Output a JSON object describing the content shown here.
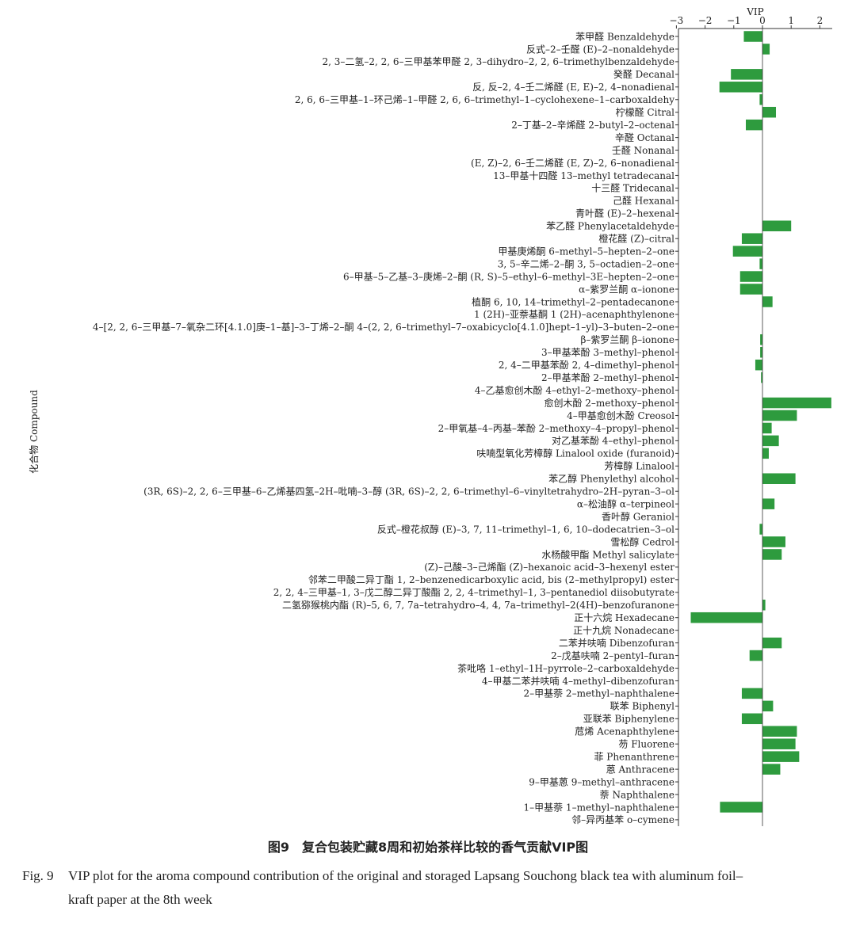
{
  "chart_data": {
    "type": "bar",
    "orientation": "horizontal",
    "xlabel": "VIP",
    "ylabel": "化合物 Compound",
    "xlim": [
      -3,
      2.4
    ],
    "xticks": [
      -3,
      -2,
      -1,
      0,
      1,
      2
    ],
    "xtick_labels": [
      "−3",
      "−2",
      "−1",
      "0",
      "1",
      "2"
    ],
    "bar_color": "#2e9b3e",
    "grid": false,
    "categories": [
      "苯甲醛 Benzaldehyde",
      "反式–2–壬醛 (E)–2–nonaldehyde",
      "2, 3–二氢–2, 2, 6–三甲基苯甲醛 2, 3–dihydro–2, 2, 6–trimethylbenzaldehyde",
      "癸醛 Decanal",
      "反, 反–2, 4–壬二烯醛 (E, E)–2, 4–nonadienal",
      "2, 6, 6–三甲基–1–环己烯–1–甲醛 2, 6, 6–trimethyl–1–cyclohexene–1–carboxaldehy",
      "柠檬醛 Citral",
      "2–丁基–2–辛烯醛 2–butyl–2–octenal",
      "辛醛 Octanal",
      "壬醛 Nonanal",
      "(E, Z)–2, 6–壬二烯醛 (E, Z)–2, 6–nonadienal",
      "13–甲基十四醛 13–methyl tetradecanal",
      "十三醛 Tridecanal",
      "己醛 Hexanal",
      "青叶醛 (E)–2–hexenal",
      "苯乙醛 Phenylacetaldehyde",
      "橙花醛 (Z)–citral",
      "甲基庚烯酮 6–methyl–5–hepten–2–one",
      "3, 5–辛二烯–2–酮 3, 5–octadien–2–one",
      "6–甲基–5–乙基–3–庚烯–2–酮 (R, S)–5–ethyl–6–methyl–3E–hepten–2–one",
      "α–紫罗兰酮 α–ionone",
      "植酮 6, 10, 14–trimethyl–2–pentadecanone",
      "1 (2H)–亚萘基酮 1 (2H)–acenaphthylenone",
      "4–[2, 2, 6–三甲基–7–氧杂二环[4.1.0]庚–1–基]–3–丁烯–2–酮 4–(2, 2, 6–trimethyl–7–oxabicyclo[4.1.0]hept–1–yl)–3–buten–2–one",
      "β–紫罗兰酮 β–ionone",
      "3–甲基苯酚 3–methyl–phenol",
      "2, 4–二甲基苯酚 2, 4–dimethyl–phenol",
      "2–甲基苯酚 2–methyl–phenol",
      "4–乙基愈创木酚 4–ethyl–2–methoxy–phenol",
      "愈创木酚 2–methoxy–phenol",
      "4–甲基愈创木酚 Creosol",
      "2–甲氧基–4–丙基–苯酚 2–methoxy–4–propyl–phenol",
      "对乙基苯酚 4–ethyl–phenol",
      "呋喃型氧化芳樟醇 Linalool oxide (furanoid)",
      "芳樟醇 Linalool",
      "苯乙醇 Phenylethyl alcohol",
      "(3R, 6S)–2, 2, 6–三甲基–6–乙烯基四氢–2H–吡喃–3–醇 (3R, 6S)–2, 2, 6–trimethyl–6–vinyltetrahydro–2H–pyran–3–ol",
      "α–松油醇 α–terpineol",
      "香叶醇 Geraniol",
      "反式–橙花叔醇 (E)–3, 7, 11–trimethyl–1, 6, 10–dodecatrien–3–ol",
      "雪松醇 Cedrol",
      "水杨酸甲酯 Methyl salicylate",
      "(Z)–己酸–3–己烯酯 (Z)–hexanoic acid–3–hexenyl ester",
      "邻苯二甲酸二异丁酯 1, 2–benzenedicarboxylic acid, bis (2–methylpropyl) ester",
      "2, 2, 4–三甲基–1, 3–戊二醇二异丁酸酯 2, 2, 4–trimethyl–1, 3–pentanediol diisobutyrate",
      "二氢猕猴桃内酯 (R)–5, 6, 7, 7a–tetrahydro–4, 4, 7a–trimethyl–2(4H)–benzofuranone",
      "正十六烷 Hexadecane",
      "正十九烷 Nonadecane",
      "二苯并呋喃 Dibenzofuran",
      "2–戊基呋喃 2–pentyl–furan",
      "茶吡咯 1–ethyl–1H–pyrrole–2–carboxaldehyde",
      "4–甲基二苯并呋喃 4–methyl–dibenzofuran",
      "2–甲基萘 2–methyl–naphthalene",
      "联苯 Biphenyl",
      "亚联苯 Biphenylene",
      "苊烯 Acenaphthylene",
      "芴 Fluorene",
      "菲 Phenanthrene",
      "蒽 Anthracene",
      "9–甲基蒽 9–methyl–anthracene",
      "萘 Naphthalene",
      "1–甲基萘 1–methyl–naphthalene",
      "邻–异丙基苯 o–cymene"
    ],
    "values": [
      -0.65,
      0.25,
      0.0,
      -1.1,
      -1.5,
      -0.1,
      0.47,
      -0.58,
      0.0,
      0.0,
      0.0,
      0.0,
      0.0,
      0.0,
      0.0,
      1.0,
      -0.72,
      -1.03,
      -0.1,
      -0.78,
      -0.78,
      0.35,
      0.0,
      0.0,
      -0.08,
      -0.08,
      -0.25,
      -0.05,
      0.0,
      2.4,
      1.2,
      0.32,
      0.57,
      0.22,
      0.0,
      1.15,
      0.0,
      0.42,
      0.0,
      -0.1,
      0.8,
      0.67,
      0.0,
      0.0,
      0.0,
      0.1,
      -2.5,
      0.0,
      0.67,
      -0.45,
      0.0,
      0.0,
      -0.72,
      0.37,
      -0.72,
      1.2,
      1.15,
      1.28,
      0.62,
      0.0,
      0.0,
      -1.48,
      0.0
    ]
  },
  "caption": {
    "cn": "图9　复合包装贮藏8周和初始茶样比较的香气贡献VIP图",
    "en_label": "Fig. 9",
    "en_line1": "VIP plot for the aroma compound contribution of the original and storaged Lapsang Souchong black tea with aluminum foil–",
    "en_line2": "kraft paper at the 8th week"
  }
}
